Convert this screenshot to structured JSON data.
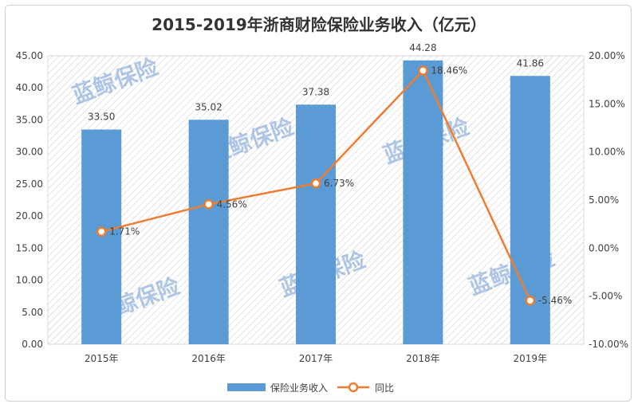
{
  "chart_data": {
    "type": "bar",
    "title": "2015-2019年浙商财险保险业务收入（亿元）",
    "categories": [
      "2015年",
      "2016年",
      "2017年",
      "2018年",
      "2019年"
    ],
    "series": [
      {
        "name": "保险业务收入",
        "type": "bar",
        "axis": "left",
        "values": [
          33.5,
          35.02,
          37.38,
          44.28,
          41.86
        ],
        "labels": [
          "33.50",
          "35.02",
          "37.38",
          "44.28",
          "41.86"
        ],
        "color": "#5b9bd5"
      },
      {
        "name": "同比",
        "type": "line",
        "axis": "right",
        "values": [
          1.71,
          4.56,
          6.73,
          18.46,
          -5.46
        ],
        "labels": [
          "1.71%",
          "4.56%",
          "6.73%",
          "18.46%",
          "-5.46%"
        ],
        "color": "#ed7d31"
      }
    ],
    "y_left": {
      "range": [
        0,
        45
      ],
      "ticks": [
        0,
        5,
        10,
        15,
        20,
        25,
        30,
        35,
        40,
        45
      ],
      "tick_labels": [
        "0.00",
        "5.00",
        "10.00",
        "15.00",
        "20.00",
        "25.00",
        "30.00",
        "35.00",
        "40.00",
        "45.00"
      ]
    },
    "y_right": {
      "range": [
        -10,
        20
      ],
      "ticks": [
        -10,
        -5,
        0,
        5,
        10,
        15,
        20
      ],
      "tick_labels": [
        "-10.00%",
        "-5.00%",
        "0.00%",
        "5.00%",
        "10.00%",
        "15.00%",
        "20.00%"
      ]
    },
    "grid": false,
    "legend": "bottom",
    "plot_background": "hatched"
  },
  "watermark": {
    "text": "蓝鲸保险"
  }
}
